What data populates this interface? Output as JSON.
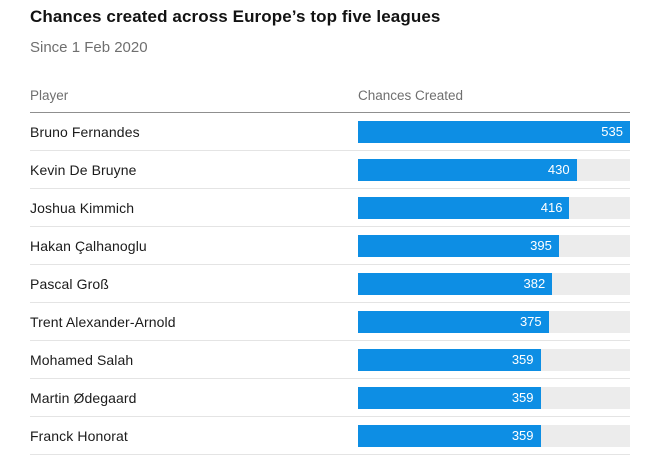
{
  "header": {
    "title": "Chances created across Europe’s top five leagues",
    "subtitle": "Since 1 Feb 2020"
  },
  "table": {
    "columns": {
      "player": "Player",
      "chances": "Chances Created"
    }
  },
  "chart_data": {
    "type": "bar",
    "orientation": "horizontal",
    "title": "Chances created across Europe’s top five leagues",
    "subtitle": "Since 1 Feb 2020",
    "category_label": "Player",
    "value_label": "Chances Created",
    "categories": [
      "Bruno Fernandes",
      "Kevin De Bruyne",
      "Joshua Kimmich",
      "Hakan Çalhanoglu",
      "Pascal Groß",
      "Trent Alexander-Arnold",
      "Mohamed Salah",
      "Martin Ødegaard",
      "Franck Honorat"
    ],
    "values": [
      535,
      430,
      416,
      395,
      382,
      375,
      359,
      359,
      359
    ],
    "xlim": [
      0,
      535
    ],
    "grid": false,
    "legend": false,
    "data_labels": "inside-end",
    "colors": {
      "bar": "#0d8ee4",
      "track": "#ececec",
      "bar_label": "#ffffff",
      "title": "#121212",
      "muted_text": "#6f6f6f",
      "header_rule": "#8f8f8f",
      "row_rule": "#e4e4e4"
    }
  }
}
